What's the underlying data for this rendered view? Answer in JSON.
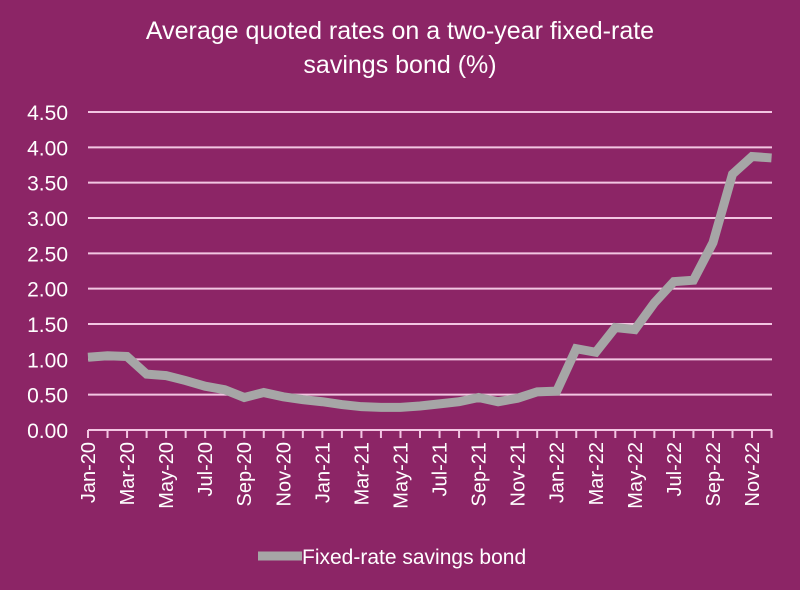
{
  "chart_data": {
    "type": "line",
    "title_line1": "Average quoted rates on a two-year fixed-rate",
    "title_line2": "savings bond  (%)",
    "xlabel": "",
    "ylabel": "",
    "ylim": [
      0,
      4.5
    ],
    "y_ticks": [
      "0.00",
      "0.50",
      "1.00",
      "1.50",
      "2.00",
      "2.50",
      "3.00",
      "3.50",
      "4.00",
      "4.50"
    ],
    "x_tick_labels": [
      "Jan-20",
      "Mar-20",
      "May-20",
      "Jul-20",
      "Sep-20",
      "Nov-20",
      "Jan-21",
      "Mar-21",
      "May-21",
      "Jul-21",
      "Sep-21",
      "Nov-21",
      "Jan-22",
      "Mar-22",
      "May-22",
      "Jul-22",
      "Sep-22",
      "Nov-22"
    ],
    "x": [
      "Jan-20",
      "Feb-20",
      "Mar-20",
      "Apr-20",
      "May-20",
      "Jun-20",
      "Jul-20",
      "Aug-20",
      "Sep-20",
      "Oct-20",
      "Nov-20",
      "Dec-20",
      "Jan-21",
      "Feb-21",
      "Mar-21",
      "Apr-21",
      "May-21",
      "Jun-21",
      "Jul-21",
      "Aug-21",
      "Sep-21",
      "Oct-21",
      "Nov-21",
      "Dec-21",
      "Jan-22",
      "Feb-22",
      "Mar-22",
      "Apr-22",
      "May-22",
      "Jun-22",
      "Jul-22",
      "Aug-22",
      "Sep-22",
      "Oct-22",
      "Nov-22",
      "Dec-22"
    ],
    "series": [
      {
        "name": "Fixed-rate savings bond",
        "color": "#a6a6a6",
        "values": [
          1.03,
          1.05,
          1.04,
          0.79,
          0.77,
          0.7,
          0.62,
          0.57,
          0.46,
          0.53,
          0.47,
          0.43,
          0.4,
          0.36,
          0.33,
          0.32,
          0.32,
          0.34,
          0.37,
          0.4,
          0.46,
          0.4,
          0.45,
          0.54,
          0.55,
          1.15,
          1.1,
          1.45,
          1.42,
          1.8,
          2.1,
          2.12,
          2.65,
          3.62,
          3.87,
          3.85
        ]
      }
    ],
    "grid": true,
    "legend": "bottom",
    "background": "#8c2566",
    "gridline_color": "#f2c6e2"
  }
}
